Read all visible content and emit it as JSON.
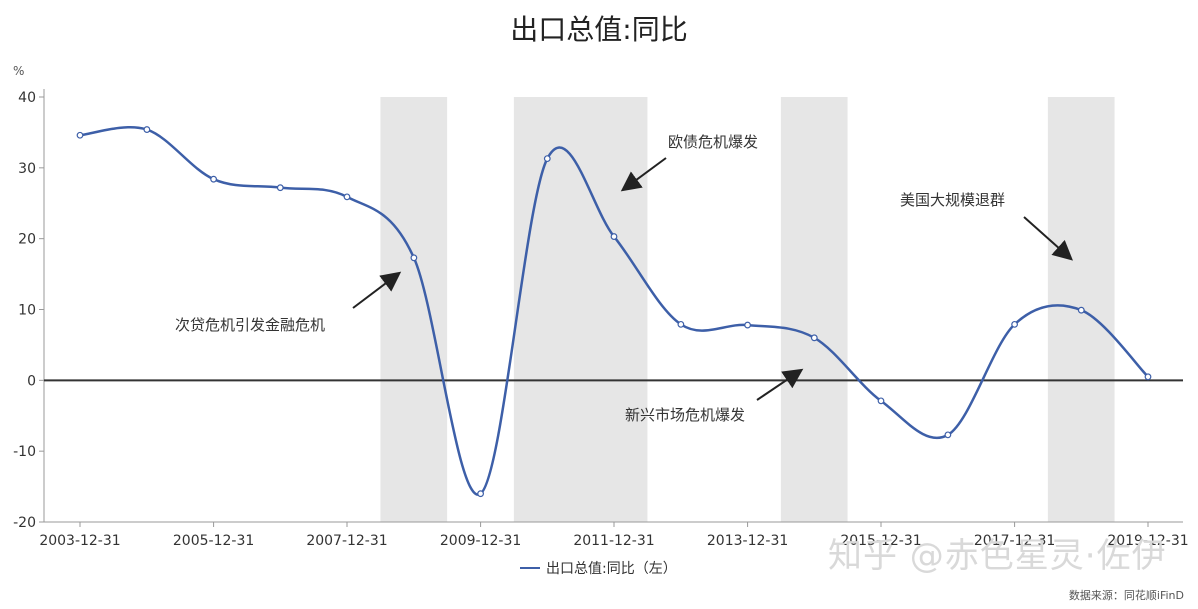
{
  "chart_data": {
    "type": "line",
    "title": "出口总值:同比",
    "yunit": "%",
    "ylim": [
      -20,
      40
    ],
    "yticks": [
      40,
      30,
      20,
      10,
      0,
      -10,
      -20
    ],
    "x_ticks": [
      "2003-12-31",
      "2005-12-31",
      "2007-12-31",
      "2009-12-31",
      "2011-12-31",
      "2013-12-31",
      "2015-12-31",
      "2017-12-31",
      "2019-12-31"
    ],
    "x": [
      "2003-12-31",
      "2004-12-31",
      "2005-12-31",
      "2006-12-31",
      "2007-12-31",
      "2008-12-31",
      "2009-12-31",
      "2010-12-31",
      "2011-12-31",
      "2012-12-31",
      "2013-12-31",
      "2014-12-31",
      "2015-12-31",
      "2016-12-31",
      "2017-12-31",
      "2018-12-31",
      "2019-12-31"
    ],
    "series": [
      {
        "name": "出口总值:同比（左）",
        "color": "#3d5fa8",
        "values": [
          34.6,
          35.4,
          28.4,
          27.2,
          25.9,
          17.3,
          -16.0,
          31.3,
          20.3,
          7.9,
          7.8,
          6.0,
          -2.9,
          -7.7,
          7.9,
          9.9,
          0.5
        ]
      }
    ],
    "shaded_periods": [
      [
        "2008-07-01",
        "2009-07-01"
      ],
      [
        "2010-07-01",
        "2012-07-01"
      ],
      [
        "2014-07-01",
        "2015-07-01"
      ],
      [
        "2018-07-01",
        "2019-07-01"
      ]
    ],
    "shade_color": "#e6e6e6",
    "annotations": [
      {
        "text": "次贷危机引发金融危机"
      },
      {
        "text": "欧债危机爆发"
      },
      {
        "text": "美国大规模退群"
      },
      {
        "text": "新兴市场危机爆发"
      }
    ],
    "legend": {
      "label": "出口总值:同比（左）",
      "placement": "bottom-center"
    }
  },
  "watermark": "知乎 @赤色星灵·佐伊",
  "source": "数据来源：同花顺iFinD"
}
